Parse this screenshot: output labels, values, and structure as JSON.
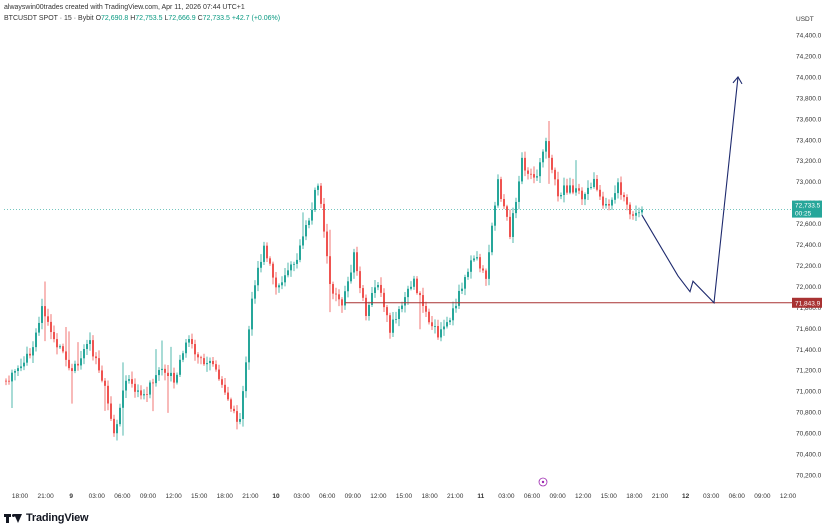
{
  "header": {
    "attribution": "alwayswin00trades created with TradingView.com, Apr 11, 2026 07:44 UTC+1",
    "symbol": "BTCUSDT SPOT · 15 · Bybit",
    "open_label": "O",
    "open": "72,690.8",
    "high_label": "H",
    "high": "72,753.5",
    "low_label": "L",
    "low": "72,666.9",
    "close_label": "C",
    "close": "72,733.5",
    "change": "+42.7 (+0.06%)"
  },
  "axis": {
    "currency": "USDT",
    "price_ticks": [
      "74,400.0",
      "74,200.0",
      "74,000.0",
      "73,800.0",
      "73,600.0",
      "73,400.0",
      "73,200.0",
      "73,000.0",
      "72,800.0",
      "72,600.0",
      "72,400.0",
      "72,200.0",
      "72,000.0",
      "71,800.0",
      "71,600.0",
      "71,400.0",
      "71,200.0",
      "71,000.0",
      "70,800.0",
      "70,600.0",
      "70,400.0",
      "70,200.0"
    ],
    "time_ticks": [
      "18:00",
      "21:00",
      "9",
      "03:00",
      "06:00",
      "09:00",
      "12:00",
      "15:00",
      "18:00",
      "21:00",
      "10",
      "03:00",
      "06:00",
      "09:00",
      "12:00",
      "15:00",
      "18:00",
      "21:00",
      "11",
      "03:00",
      "06:00",
      "09:00",
      "12:00",
      "15:00",
      "18:00",
      "21:00",
      "12",
      "03:00",
      "06:00",
      "09:00",
      "12:00"
    ],
    "bold_ticks": [
      "9",
      "10",
      "11",
      "12"
    ]
  },
  "price_labels": {
    "current_price": "72,733.5",
    "countdown": "00:25",
    "support": "71,843.9"
  },
  "colors": {
    "up": "#26a69a",
    "down": "#ef5350",
    "support_line": "#a83232",
    "projection": "#1e2a6e",
    "current_line": "#26a69a"
  },
  "chart_data": {
    "type": "candlestick",
    "symbol": "BTCUSDT",
    "interval": "15",
    "ylim": [
      70100,
      74500
    ],
    "support_level": 71843.9,
    "current_price": 72733.5,
    "price_path_anchors": [
      [
        0,
        71100
      ],
      [
        8,
        71350
      ],
      [
        12,
        71780
      ],
      [
        16,
        71500
      ],
      [
        22,
        71200
      ],
      [
        28,
        71450
      ],
      [
        33,
        71050
      ],
      [
        36,
        70600
      ],
      [
        40,
        71100
      ],
      [
        46,
        70950
      ],
      [
        52,
        71250
      ],
      [
        56,
        71100
      ],
      [
        60,
        71500
      ],
      [
        64,
        71350
      ],
      [
        70,
        71200
      ],
      [
        74,
        70900
      ],
      [
        78,
        70700
      ],
      [
        82,
        71900
      ],
      [
        86,
        72400
      ],
      [
        90,
        72000
      ],
      [
        96,
        72200
      ],
      [
        100,
        72550
      ],
      [
        104,
        73000
      ],
      [
        108,
        72000
      ],
      [
        112,
        71800
      ],
      [
        116,
        72300
      ],
      [
        120,
        71750
      ],
      [
        124,
        72050
      ],
      [
        128,
        71600
      ],
      [
        132,
        71850
      ],
      [
        136,
        72050
      ],
      [
        140,
        71750
      ],
      [
        144,
        71550
      ],
      [
        148,
        71700
      ],
      [
        152,
        72000
      ],
      [
        156,
        72300
      ],
      [
        160,
        72100
      ],
      [
        164,
        73000
      ],
      [
        168,
        72500
      ],
      [
        172,
        73200
      ],
      [
        176,
        73000
      ],
      [
        180,
        73350
      ],
      [
        184,
        72900
      ],
      [
        188,
        72950
      ],
      [
        192,
        72850
      ],
      [
        196,
        73000
      ],
      [
        200,
        72750
      ],
      [
        204,
        72950
      ],
      [
        208,
        72700
      ],
      [
        212,
        72733.5
      ]
    ],
    "projection_path": [
      [
        212,
        72680
      ],
      [
        224,
        72100
      ],
      [
        228,
        71950
      ],
      [
        229,
        72050
      ],
      [
        236,
        71843.9
      ],
      [
        244,
        74000
      ]
    ]
  }
}
